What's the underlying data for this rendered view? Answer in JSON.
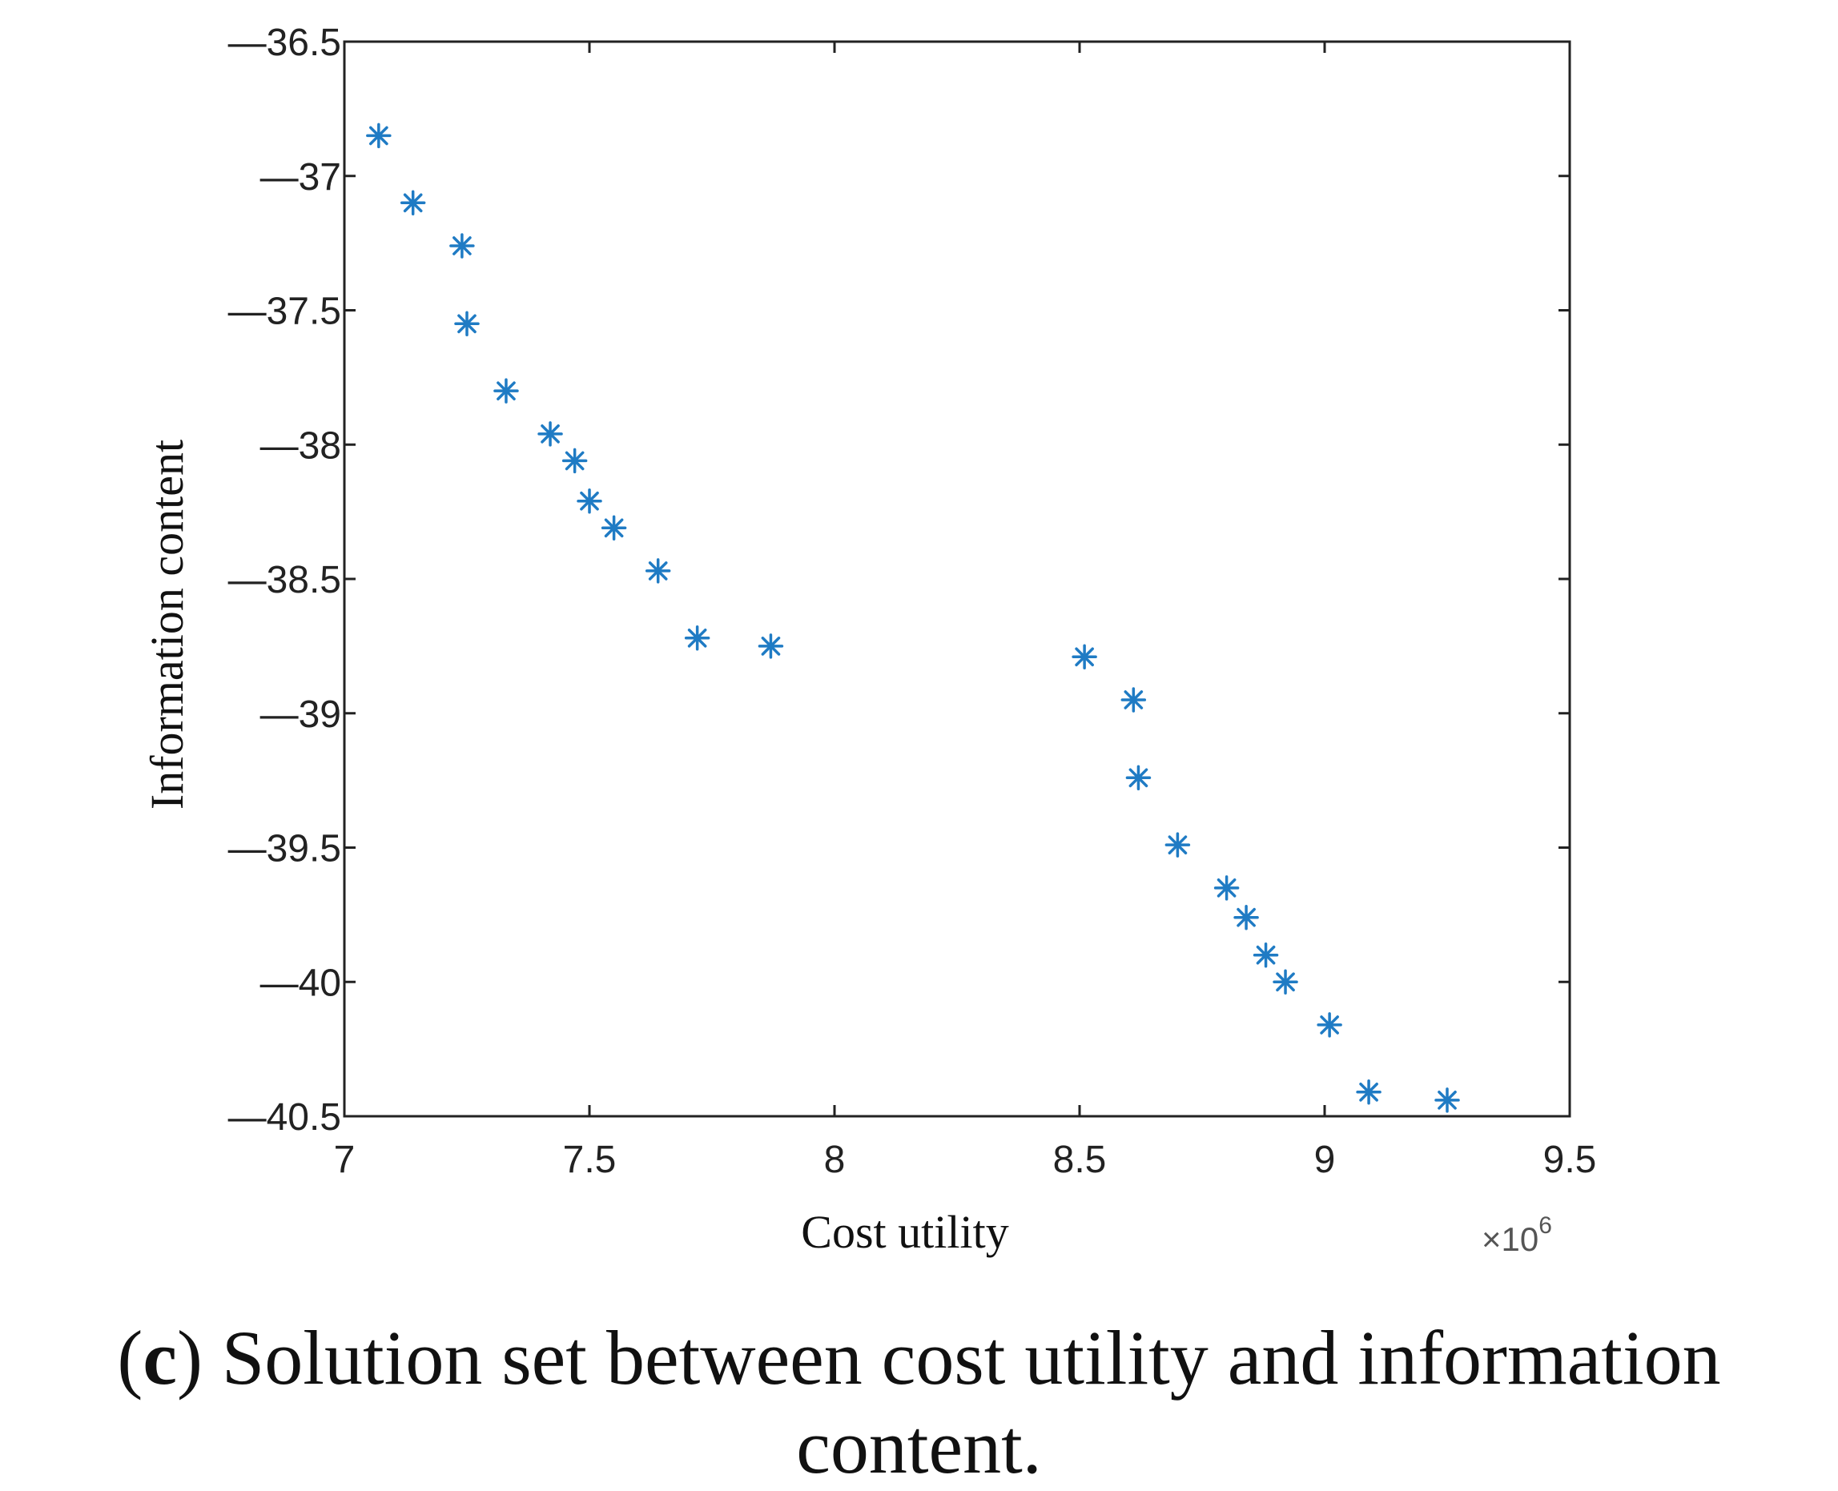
{
  "chart_data": {
    "type": "scatter",
    "marker": "asterisk",
    "color": "#1f7bc4",
    "xlabel": "Cost utility",
    "ylabel": "Information content",
    "x_exponent": "×10",
    "x_exponent_power": "6",
    "xlim": [
      7,
      9.5
    ],
    "ylim": [
      -40.5,
      -36.5
    ],
    "x_ticks": [
      7,
      7.5,
      8,
      8.5,
      9,
      9.5
    ],
    "x_tick_labels": [
      "7",
      "7.5",
      "8",
      "8.5",
      "9",
      "9.5"
    ],
    "y_ticks": [
      -36.5,
      -37,
      -37.5,
      -38,
      -38.5,
      -39,
      -39.5,
      -40,
      -40.5
    ],
    "y_tick_labels": [
      "—36.5",
      "—37",
      "—37.5",
      "—38",
      "—38.5",
      "—39",
      "—39.5",
      "—40",
      "—40.5"
    ],
    "grid": false,
    "points": [
      {
        "x": 7.07,
        "y": -36.85
      },
      {
        "x": 7.14,
        "y": -37.1
      },
      {
        "x": 7.24,
        "y": -37.26
      },
      {
        "x": 7.25,
        "y": -37.55
      },
      {
        "x": 7.33,
        "y": -37.8
      },
      {
        "x": 7.42,
        "y": -37.96
      },
      {
        "x": 7.47,
        "y": -38.06
      },
      {
        "x": 7.5,
        "y": -38.21
      },
      {
        "x": 7.55,
        "y": -38.31
      },
      {
        "x": 7.64,
        "y": -38.47
      },
      {
        "x": 7.72,
        "y": -38.72
      },
      {
        "x": 7.87,
        "y": -38.75
      },
      {
        "x": 8.51,
        "y": -38.79
      },
      {
        "x": 8.61,
        "y": -38.95
      },
      {
        "x": 8.62,
        "y": -39.24
      },
      {
        "x": 8.7,
        "y": -39.49
      },
      {
        "x": 8.8,
        "y": -39.65
      },
      {
        "x": 8.84,
        "y": -39.76
      },
      {
        "x": 8.88,
        "y": -39.9
      },
      {
        "x": 8.92,
        "y": -40.0
      },
      {
        "x": 9.01,
        "y": -40.16
      },
      {
        "x": 9.09,
        "y": -40.41
      },
      {
        "x": 9.25,
        "y": -40.44
      }
    ]
  },
  "caption": {
    "letter": "c",
    "text": "Solution set between cost utility and information content."
  }
}
